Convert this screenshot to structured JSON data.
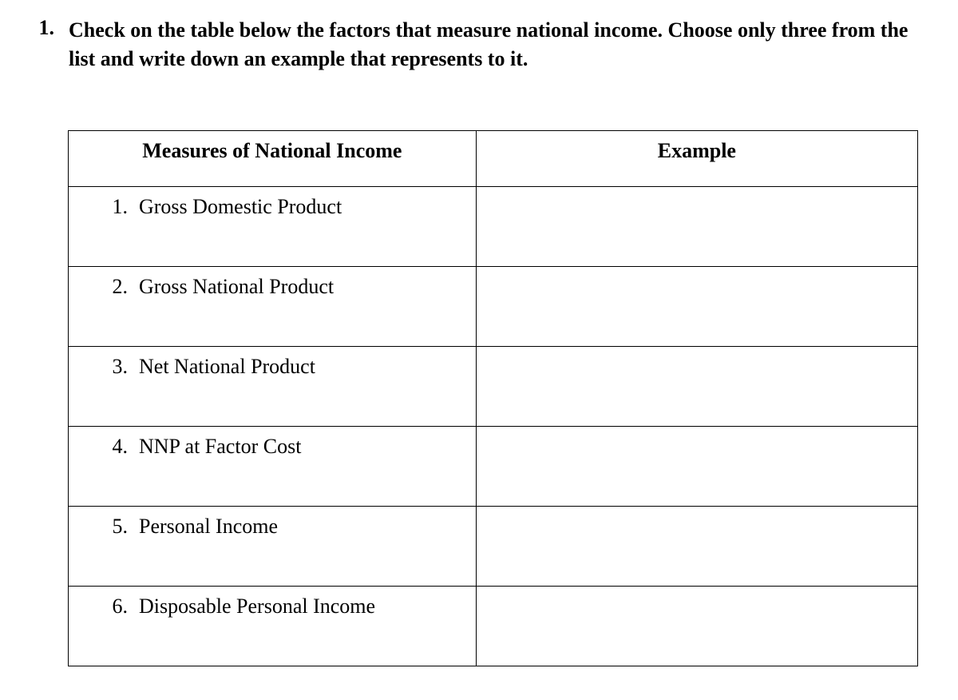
{
  "question": {
    "number": "1.",
    "text": "Check on the table below the factors that measure national income. Choose only three from the list and write down an example that represents to it."
  },
  "table": {
    "headers": {
      "measures": "Measures of National Income",
      "example": "Example"
    },
    "rows": [
      {
        "num": "1.",
        "label": "Gross Domestic Product",
        "example": ""
      },
      {
        "num": "2.",
        "label": "Gross National Product",
        "example": ""
      },
      {
        "num": "3.",
        "label": "Net National Product",
        "example": ""
      },
      {
        "num": "4.",
        "label": "NNP at Factor Cost",
        "example": ""
      },
      {
        "num": "5.",
        "label": "Personal Income",
        "example": ""
      },
      {
        "num": "6.",
        "label": "Disposable Personal Income",
        "example": ""
      }
    ]
  }
}
